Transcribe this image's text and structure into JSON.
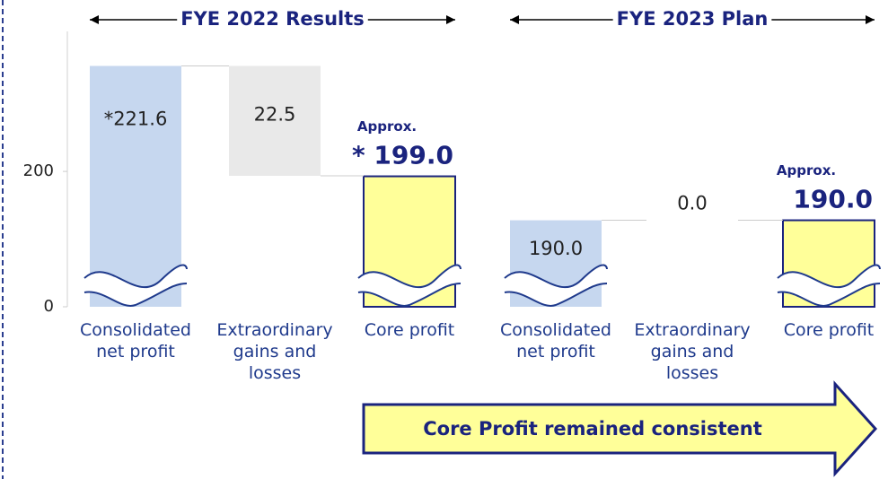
{
  "chart_data": [
    {
      "type": "waterfall",
      "title": "FYE 2022 Results",
      "categories": [
        "Consolidated net profit",
        "Extraordinary gains and losses",
        "Core profit"
      ],
      "values": [
        221.6,
        22.5,
        199.0
      ],
      "value_labels": [
        "*221.6",
        "22.5",
        "* 199.0"
      ],
      "total_note": "Approx.",
      "colors": [
        "#c6d7ef",
        "#e9e9e9",
        "#ffff99"
      ],
      "ylim": [
        0,
        225
      ],
      "y_break": [
        0,
        180
      ],
      "yticks": [
        0,
        200
      ]
    },
    {
      "type": "waterfall",
      "title": "FYE 2023 Plan",
      "categories": [
        "Consolidated net profit",
        "Extraordinary gains and losses",
        "Core profit"
      ],
      "values": [
        190.0,
        0.0,
        190.0
      ],
      "value_labels": [
        "190.0",
        "0.0",
        "190.0"
      ],
      "total_note": "Approx.",
      "colors": [
        "#c6d7ef",
        "#e9e9e9",
        "#ffff99"
      ],
      "ylim": [
        0,
        225
      ],
      "y_break": [
        0,
        180
      ]
    }
  ],
  "banner": "Core Profit remained  consistent"
}
